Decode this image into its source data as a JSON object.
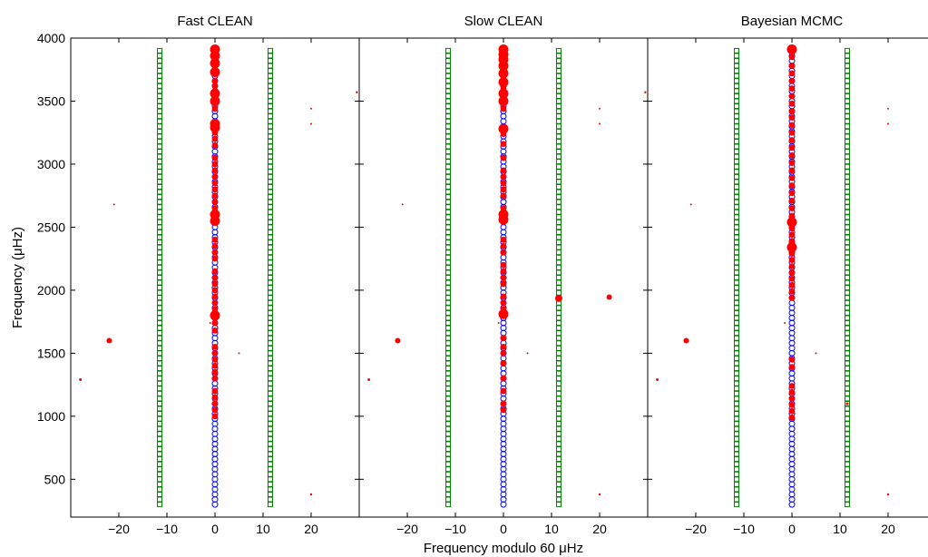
{
  "chart_data": {
    "type": "scatter",
    "xlabel": "Frequency modulo 60 μHz",
    "ylabel": "Frequency (μHz)",
    "xlim": [
      -30,
      30
    ],
    "ylim": [
      200,
      4000
    ],
    "xticks": [
      -20,
      -10,
      0,
      10,
      20
    ],
    "yticks": [
      500,
      1000,
      1500,
      2000,
      2500,
      3000,
      3500,
      4000
    ],
    "colors": {
      "candidate": "#0000ff",
      "detected": "#ff0000",
      "reference": "#008000"
    },
    "panels": [
      {
        "title": "Fast CLEAN",
        "large_red": [
          3910,
          3860,
          3800,
          3730,
          3560,
          3500,
          3320,
          3290,
          2600,
          2550,
          1800
        ],
        "small_red": [
          3660,
          3620,
          3440,
          3250,
          3200,
          3150,
          3050,
          3000,
          2950,
          2900,
          2850,
          2800,
          2750,
          2700,
          2650,
          2400,
          2350,
          2300,
          2250,
          2150,
          2100,
          2050,
          2000,
          1950,
          1900,
          1850,
          1740,
          1680,
          1550,
          1500,
          1450,
          1400,
          1350,
          1300,
          1200,
          1150,
          1100,
          1050,
          1000
        ],
        "stray": [
          {
            "x": -28,
            "y": 1290,
            "s": 1.5
          },
          {
            "x": -22,
            "y": 1600,
            "s": 3
          },
          {
            "x": -1,
            "y": 1740,
            "s": 1
          },
          {
            "x": 5,
            "y": 1500,
            "s": 1
          },
          {
            "x": 20,
            "y": 3440,
            "s": 1
          },
          {
            "x": 20,
            "y": 3320,
            "s": 1
          },
          {
            "x": 29.5,
            "y": 3570,
            "s": 1.2
          },
          {
            "x": 20,
            "y": 380,
            "s": 1.2
          },
          {
            "x": -21,
            "y": 2680,
            "s": 1
          }
        ]
      },
      {
        "title": "Slow CLEAN",
        "large_red": [
          3910,
          3870,
          3830,
          3780,
          3720,
          3650,
          3560,
          3500,
          3280,
          2600,
          2560,
          1810
        ],
        "small_red": [
          3600,
          3440,
          3240,
          3160,
          3050,
          2950,
          2900,
          2850,
          2800,
          2750,
          2650,
          2400,
          2350,
          2300,
          2200,
          2150,
          2100,
          2050,
          1950,
          1900,
          1850,
          1620,
          1550,
          1500,
          1420,
          1300,
          1200,
          1100,
          1050
        ],
        "stray": [
          {
            "x": -28,
            "y": 1290,
            "s": 1.5
          },
          {
            "x": -22,
            "y": 1600,
            "s": 3
          },
          {
            "x": -1,
            "y": 1740,
            "s": 1
          },
          {
            "x": 11.5,
            "y": 1935,
            "s": 4
          },
          {
            "x": 22,
            "y": 1945,
            "s": 3
          },
          {
            "x": 5,
            "y": 1500,
            "s": 1
          },
          {
            "x": 20,
            "y": 3440,
            "s": 1
          },
          {
            "x": 20,
            "y": 3320,
            "s": 1
          },
          {
            "x": 29.5,
            "y": 3570,
            "s": 1.2
          },
          {
            "x": 20,
            "y": 380,
            "s": 1.2
          },
          {
            "x": -21,
            "y": 2680,
            "s": 1
          }
        ]
      },
      {
        "title": "Bayesian MCMC",
        "large_red": [
          3910,
          2340,
          2540
        ],
        "small_red": [
          3850,
          3780,
          3720,
          3660,
          3600,
          3540,
          3480,
          3420,
          3370,
          3310,
          3250,
          3190,
          3130,
          3070,
          3010,
          2950,
          2890,
          2830,
          2770,
          2710,
          2650,
          2590,
          2490,
          2440,
          2390,
          2290,
          2240,
          2190,
          2140,
          2090,
          2040,
          1990,
          1940,
          1450,
          1390,
          1240,
          1190,
          1140,
          1090,
          1040,
          990
        ],
        "stray": [
          {
            "x": -28,
            "y": 1290,
            "s": 1.5
          },
          {
            "x": -22,
            "y": 1600,
            "s": 3
          },
          {
            "x": -1.5,
            "y": 1740,
            "s": 1
          },
          {
            "x": 5,
            "y": 1500,
            "s": 1
          },
          {
            "x": 20,
            "y": 3440,
            "s": 1
          },
          {
            "x": 20,
            "y": 3320,
            "s": 1
          },
          {
            "x": 20,
            "y": 380,
            "s": 1.2
          },
          {
            "x": -21,
            "y": 2680,
            "s": 1
          },
          {
            "x": 11.5,
            "y": 1100,
            "s": 1.5
          }
        ]
      }
    ]
  }
}
